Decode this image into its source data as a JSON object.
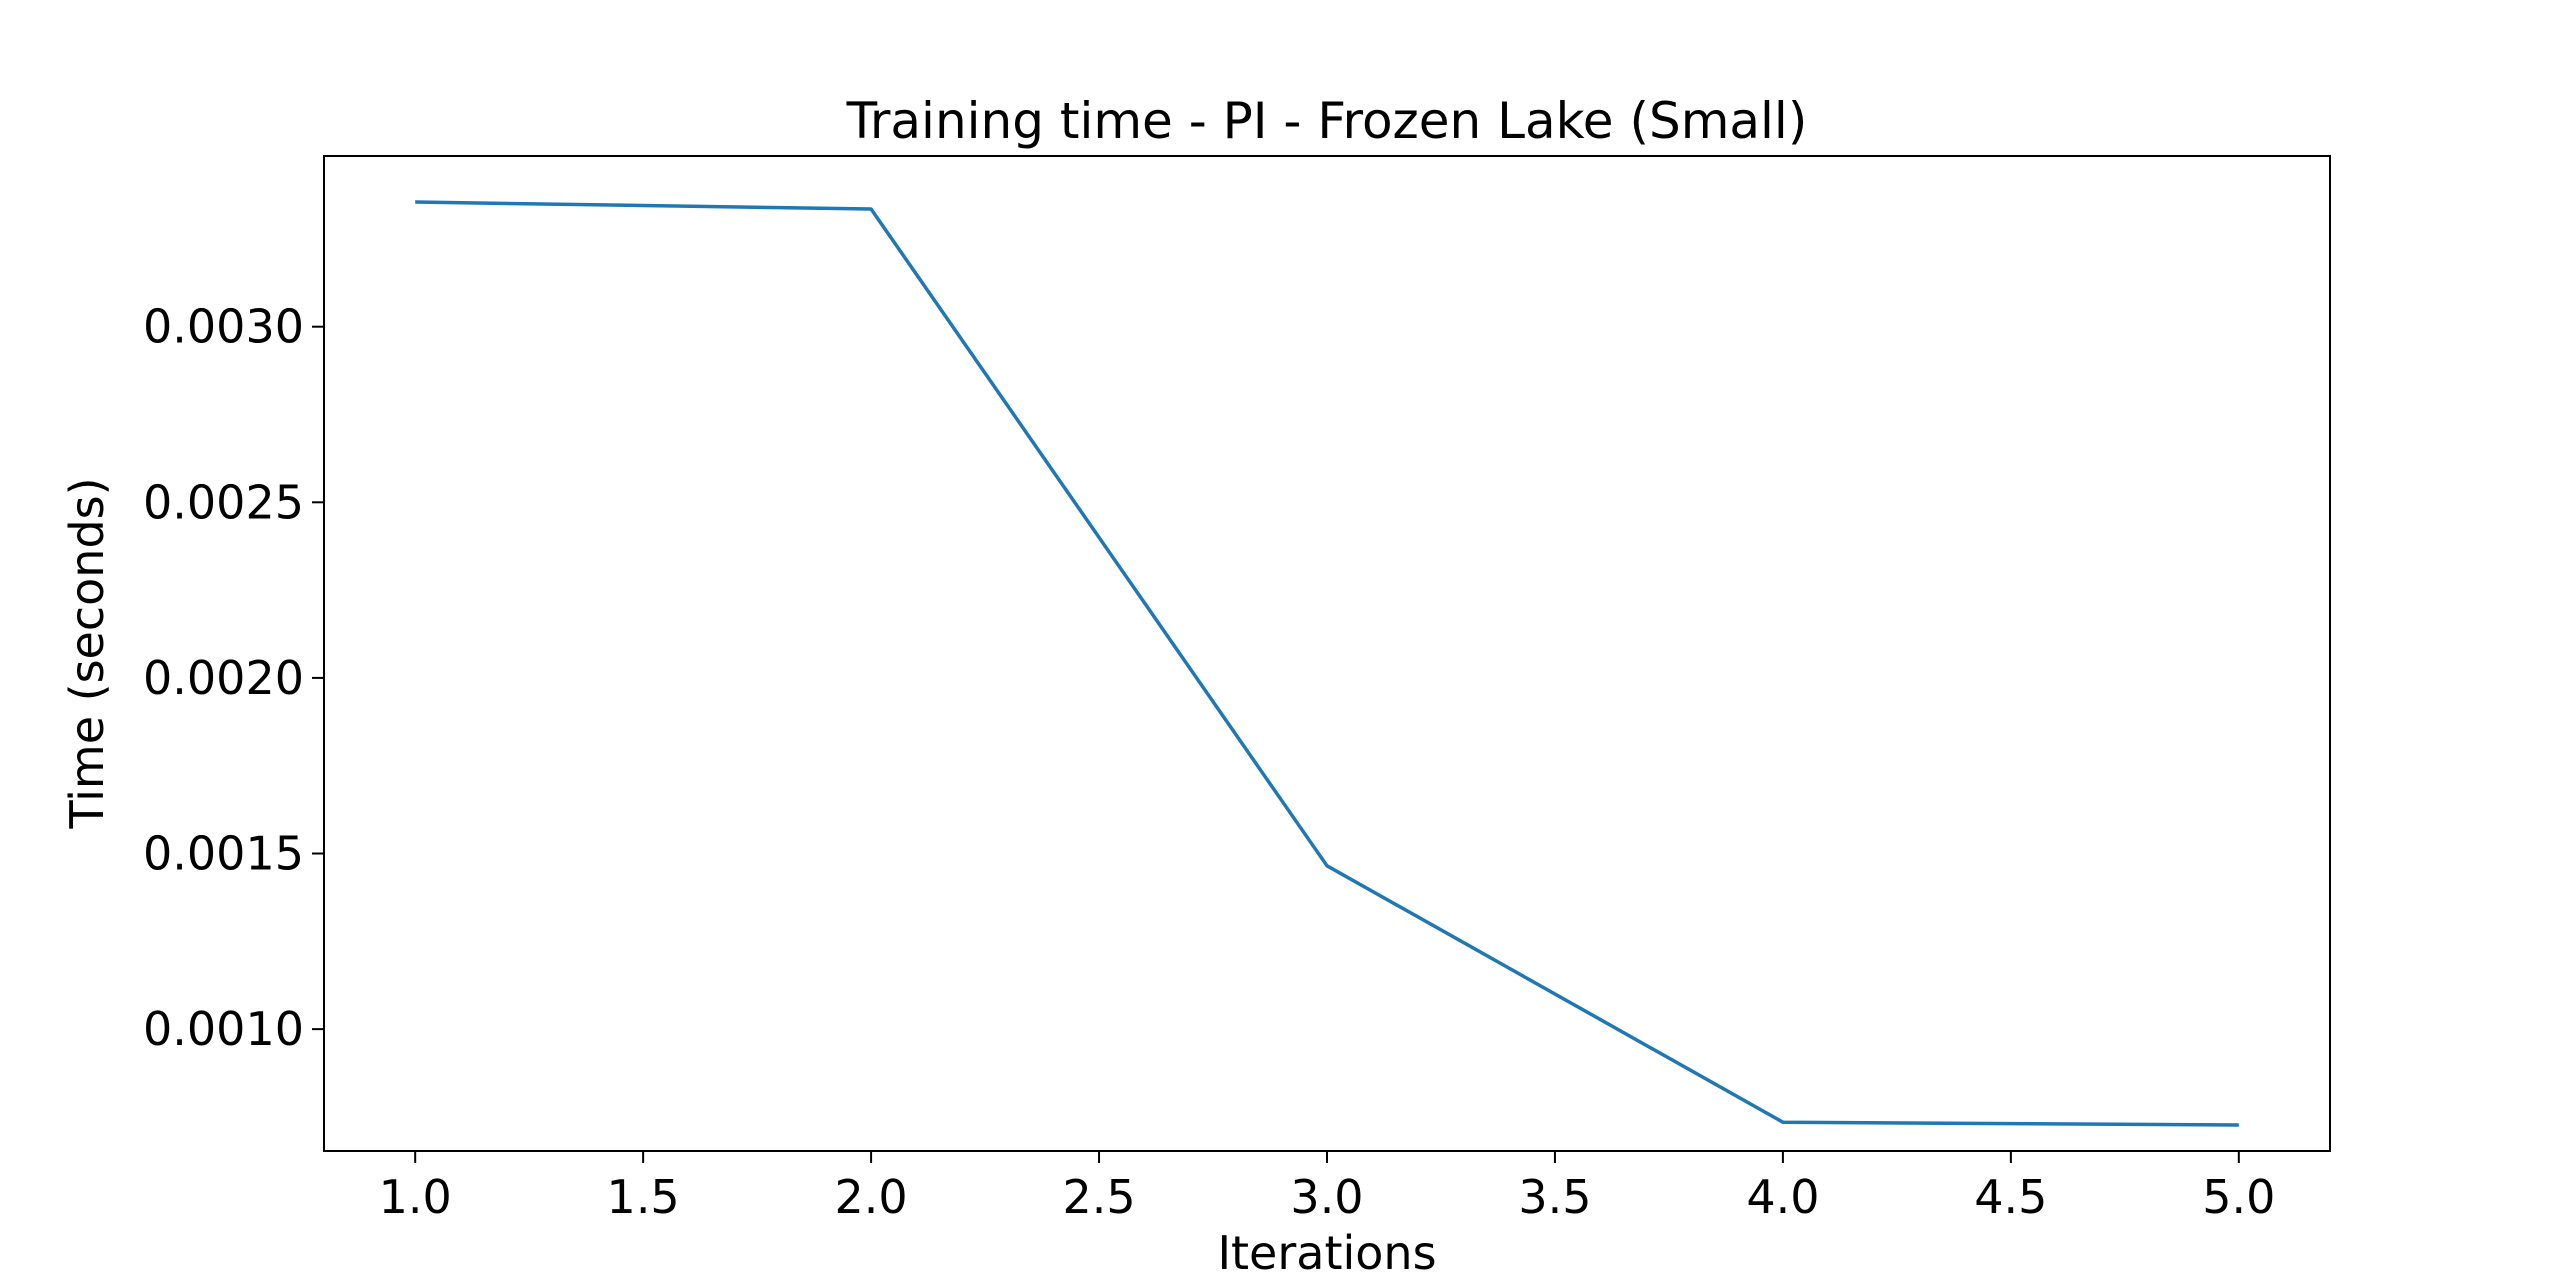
{
  "chart_data": {
    "type": "line",
    "title": "Training time - PI - Frozen Lake (Small)",
    "xlabel": "Iterations",
    "ylabel": "Time (seconds)",
    "x": [
      1.0,
      2.0,
      3.0,
      4.0,
      5.0
    ],
    "series": [
      {
        "values": [
          0.003355,
          0.003335,
          0.001465,
          0.000735,
          0.000727
        ],
        "color": "#1f77b4"
      }
    ],
    "xlim": [
      0.8,
      5.2
    ],
    "ylim": [
      0.000653,
      0.003486
    ],
    "xticks": [
      "1.0",
      "1.5",
      "2.0",
      "2.5",
      "3.0",
      "3.5",
      "4.0",
      "4.5",
      "5.0"
    ],
    "yticks": [
      "0.0010",
      "0.0015",
      "0.0020",
      "0.0025",
      "0.0030"
    ],
    "grid": false,
    "legend": "none"
  }
}
